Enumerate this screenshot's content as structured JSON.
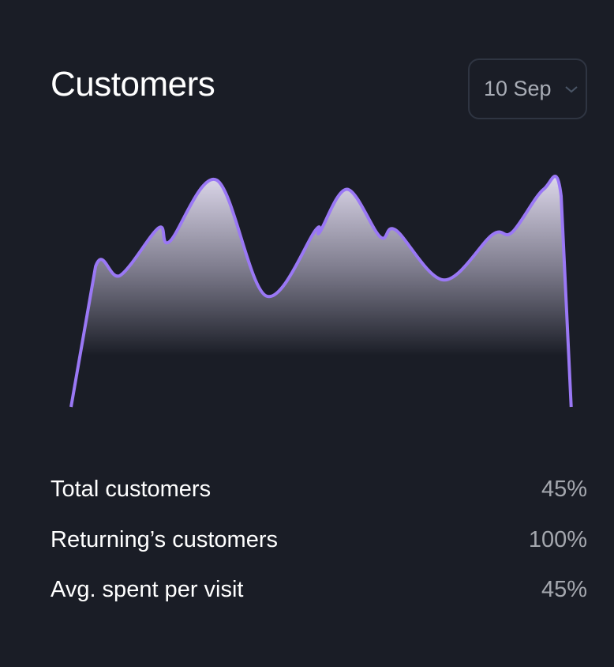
{
  "header": {
    "title": "Customers",
    "date_select": {
      "value": "10 Sep",
      "icon": "chevron-down-icon"
    }
  },
  "colors": {
    "background": "#1a1d26",
    "line": "#9a78f5",
    "fill_top": "#d4cfe3"
  },
  "chart_data": {
    "type": "area",
    "x": [
      0,
      4.9,
      9.8,
      17.5,
      19.7,
      29.1,
      38.9,
      48.8,
      49.6,
      55.1,
      61.7,
      64.8,
      74.4,
      84.1,
      88.0,
      94.3,
      97.8,
      99.8
    ],
    "values": [
      0,
      62,
      58,
      79,
      73,
      100,
      49,
      78,
      77,
      96,
      75,
      78,
      56,
      76,
      77,
      96,
      93,
      0
    ],
    "grid": false,
    "legend": "none"
  },
  "stats": [
    {
      "label": "Total customers",
      "value": "45%"
    },
    {
      "label": "Returning’s customers",
      "value": "100%"
    },
    {
      "label": "Avg. spent per visit",
      "value": "45%"
    }
  ]
}
